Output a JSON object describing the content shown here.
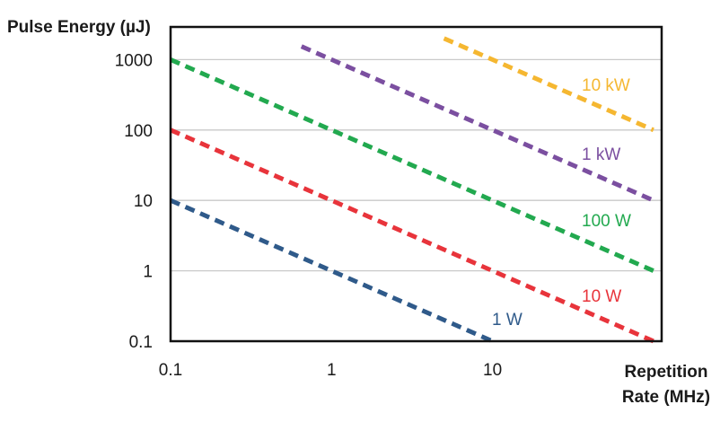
{
  "chart_data": {
    "type": "line",
    "ylabel": "Pulse Energy (µJ)",
    "xlabel_lines": [
      "Repetition",
      "Rate (MHz)"
    ],
    "x_scale": "log",
    "y_scale": "log",
    "xlim": [
      0.1,
      100
    ],
    "ylim": [
      0.1,
      4000
    ],
    "x_ticks": [
      0.1,
      1,
      10
    ],
    "x_tick_labels": [
      "0.1",
      "1",
      "10"
    ],
    "y_ticks": [
      0.1,
      1,
      10,
      100,
      1000
    ],
    "y_tick_labels": [
      "0.1",
      "1",
      "10",
      "100",
      "1000"
    ],
    "grid": "horizontal",
    "series": [
      {
        "name": "1 W",
        "color": "#2f5a8a",
        "x": [
          0.1,
          10
        ],
        "y": [
          10,
          0.1
        ]
      },
      {
        "name": "10 W",
        "color": "#e8343b",
        "x": [
          0.1,
          100
        ],
        "y": [
          100,
          0.1
        ]
      },
      {
        "name": "100 W",
        "color": "#22a94f",
        "x": [
          0.1,
          100
        ],
        "y": [
          1000,
          1
        ]
      },
      {
        "name": "1 kW",
        "color": "#7b4fa0",
        "x": [
          0.65,
          100
        ],
        "y": [
          1540,
          10
        ]
      },
      {
        "name": "10 kW",
        "color": "#f5b731",
        "x": [
          5,
          100
        ],
        "y": [
          2000,
          100
        ]
      }
    ]
  }
}
